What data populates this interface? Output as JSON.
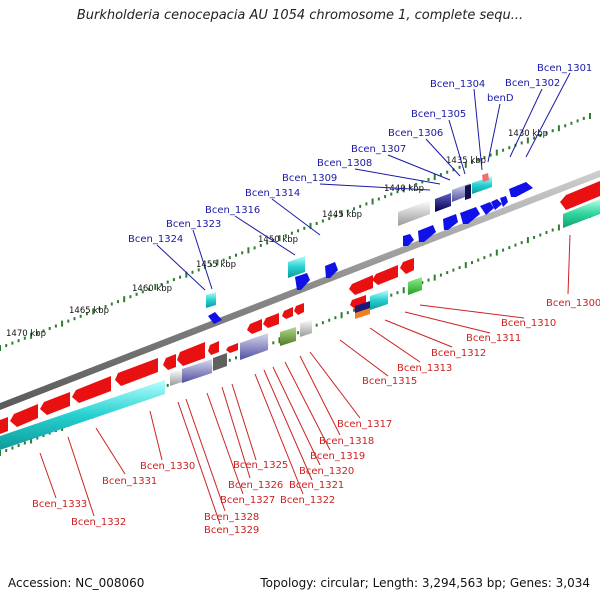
{
  "title": "Burkholderia cenocepacia AU 1054 chromosome 1, complete sequ...",
  "footer": {
    "accession": "Accession: NC_008060",
    "summary": "Topology: circular; Length: 3,294,563 bp; Genes: 3,034"
  },
  "kbp_labels": [
    "1430 kbp",
    "1435 kbp",
    "1440 kbp",
    "1445 kbp",
    "1450 kbp",
    "1455 kbp",
    "1460 kbp",
    "1465 kbp",
    "1470 kbp"
  ],
  "top_labels": [
    "Bcen_1301",
    "Bcen_1302",
    "benD",
    "Bcen_1304",
    "Bcen_1305",
    "Bcen_1306",
    "Bcen_1307",
    "Bcen_1308",
    "Bcen_1309",
    "Bcen_1314",
    "Bcen_1316",
    "Bcen_1323",
    "Bcen_1324"
  ],
  "bottom_labels": [
    "Bcen_1300",
    "Bcen_1310",
    "Bcen_1311",
    "Bcen_1312",
    "Bcen_1313",
    "Bcen_1315",
    "Bcen_1317",
    "Bcen_1318",
    "Bcen_1319",
    "Bcen_1320",
    "Bcen_1321",
    "Bcen_1322",
    "Bcen_1325",
    "Bcen_1326",
    "Bcen_1327",
    "Bcen_1328",
    "Bcen_1329",
    "Bcen_1330",
    "Bcen_1331",
    "Bcen_1332",
    "Bcen_1333"
  ],
  "colors": {
    "forward": "#1010e8",
    "reverse": "#e81010",
    "backbone": "#808080",
    "ticks": "#2e7d32",
    "label_top": "#1a1aa6",
    "label_bottom": "#cc2222"
  }
}
